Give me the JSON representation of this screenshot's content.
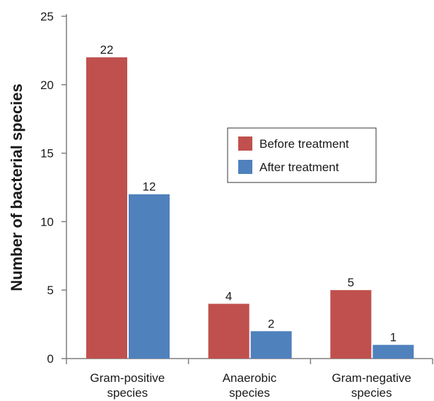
{
  "chart_data": {
    "type": "bar",
    "categories": [
      [
        "Gram-positive",
        "species"
      ],
      [
        "Anaerobic",
        "species"
      ],
      [
        "Gram-negative",
        "species"
      ]
    ],
    "series": [
      {
        "name": "Before treatment",
        "values": [
          22,
          4,
          5
        ],
        "color": "#c0504d"
      },
      {
        "name": "After treatment",
        "values": [
          12,
          2,
          1
        ],
        "color": "#4f81bd"
      }
    ],
    "ylabel": "Number of bacterial species",
    "ylim": [
      0,
      25
    ],
    "yticks": [
      0,
      5,
      10,
      15,
      20,
      25
    ],
    "grid": false,
    "legend_position": "right"
  }
}
